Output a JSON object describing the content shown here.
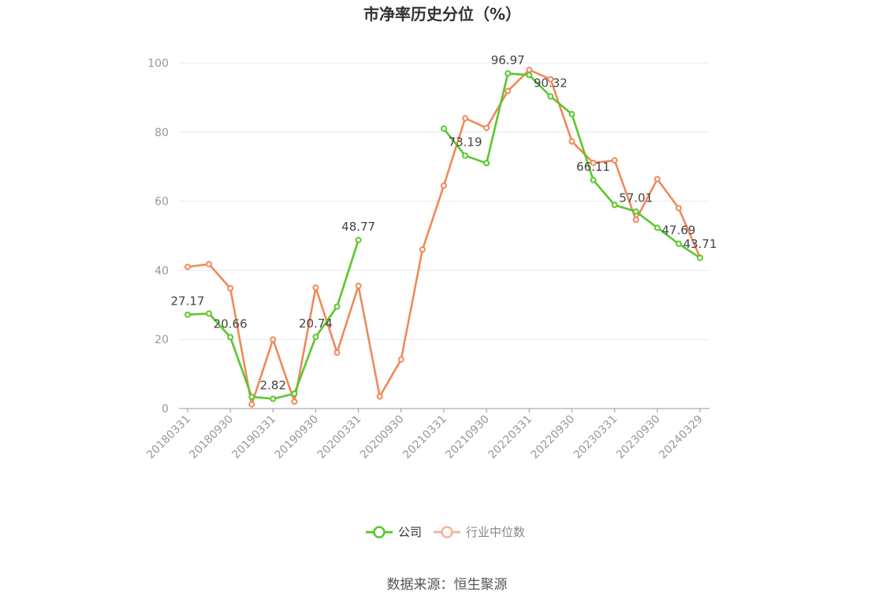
{
  "chart_data": {
    "type": "line",
    "title": "市净率历史分位（%）",
    "source": "数据来源：恒生聚源",
    "ylim": [
      0,
      100
    ],
    "yticks": [
      0,
      20,
      40,
      60,
      80,
      100
    ],
    "grid": true,
    "legend_position": "bottom-center",
    "x_tick_labels": [
      "20180331",
      "20180930",
      "20190331",
      "20190930",
      "20200331",
      "20200930",
      "20210331",
      "20210930",
      "20220331",
      "20220930",
      "20230331",
      "20230930",
      "20240329"
    ],
    "x": [
      "20180331",
      "20180630",
      "20180930",
      "20181231",
      "20190331",
      "20190630",
      "20190930",
      "20191231",
      "20200331",
      "20200630",
      "20200930",
      "20201231",
      "20210331",
      "20210630",
      "20210930",
      "20211231",
      "20220331",
      "20220630",
      "20220930",
      "20221231",
      "20230331",
      "20230630",
      "20230930",
      "20231231",
      "20240329"
    ],
    "series": [
      {
        "name": "公司",
        "color": "#5ac72b",
        "values": [
          27.17,
          27.5,
          20.66,
          3.4,
          2.82,
          4.3,
          20.74,
          29.5,
          48.77,
          null,
          null,
          null,
          81.0,
          73.19,
          71.0,
          96.97,
          96.5,
          90.32,
          85.2,
          66.11,
          58.9,
          57.01,
          52.3,
          47.69,
          43.6
        ],
        "labels": {
          "0": "27.17",
          "2": "20.66",
          "4": "2.82",
          "6": "20.74",
          "8": "48.77",
          "13": "73.19",
          "15": "96.97",
          "17": "90.32",
          "19": "66.11",
          "21": "57.01",
          "23": "47.69"
        }
      },
      {
        "name": "行业中位数",
        "color": "#f0895a",
        "values": [
          41.0,
          41.8,
          34.8,
          1.2,
          20.0,
          2.0,
          35.0,
          16.2,
          35.5,
          3.5,
          14.2,
          46.0,
          64.5,
          84.0,
          81.2,
          91.9,
          98.0,
          95.3,
          77.3,
          71.1,
          71.8,
          54.6,
          66.4,
          58.0,
          43.71
        ],
        "labels": {
          "24": "43.71"
        }
      }
    ]
  }
}
